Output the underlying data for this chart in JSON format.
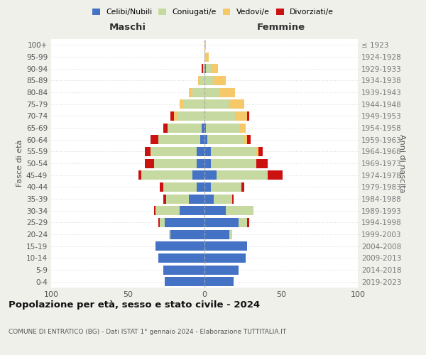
{
  "age_groups": [
    "0-4",
    "5-9",
    "10-14",
    "15-19",
    "20-24",
    "25-29",
    "30-34",
    "35-39",
    "40-44",
    "45-49",
    "50-54",
    "55-59",
    "60-64",
    "65-69",
    "70-74",
    "75-79",
    "80-84",
    "85-89",
    "90-94",
    "95-99",
    "100+"
  ],
  "birth_years": [
    "2019-2023",
    "2014-2018",
    "2009-2013",
    "2004-2008",
    "1999-2003",
    "1994-1998",
    "1989-1993",
    "1984-1988",
    "1979-1983",
    "1974-1978",
    "1969-1973",
    "1964-1968",
    "1959-1963",
    "1954-1958",
    "1949-1953",
    "1944-1948",
    "1939-1943",
    "1934-1938",
    "1929-1933",
    "1924-1928",
    "≤ 1923"
  ],
  "maschi": {
    "celibe": [
      26,
      27,
      30,
      32,
      22,
      26,
      16,
      10,
      5,
      8,
      5,
      5,
      3,
      2,
      0,
      0,
      0,
      0,
      0,
      0,
      0
    ],
    "coniugato": [
      0,
      0,
      0,
      0,
      1,
      3,
      16,
      15,
      22,
      33,
      28,
      30,
      27,
      22,
      18,
      14,
      8,
      3,
      1,
      0,
      0
    ],
    "vedovo": [
      0,
      0,
      0,
      0,
      0,
      0,
      0,
      0,
      0,
      0,
      0,
      0,
      0,
      0,
      2,
      2,
      2,
      1,
      0,
      0,
      0
    ],
    "divorziato": [
      0,
      0,
      0,
      0,
      0,
      1,
      1,
      2,
      2,
      2,
      6,
      4,
      5,
      3,
      2,
      0,
      0,
      0,
      1,
      0,
      0
    ]
  },
  "femmine": {
    "nubile": [
      19,
      22,
      27,
      28,
      16,
      22,
      14,
      6,
      4,
      8,
      4,
      4,
      2,
      1,
      0,
      0,
      0,
      0,
      1,
      0,
      0
    ],
    "coniugata": [
      0,
      0,
      0,
      0,
      2,
      6,
      18,
      12,
      20,
      33,
      30,
      30,
      24,
      22,
      20,
      16,
      10,
      6,
      3,
      1,
      0
    ],
    "vedova": [
      0,
      0,
      0,
      0,
      0,
      0,
      0,
      0,
      0,
      0,
      0,
      1,
      2,
      4,
      8,
      10,
      10,
      8,
      5,
      2,
      1
    ],
    "divorziata": [
      0,
      0,
      0,
      0,
      0,
      1,
      0,
      1,
      2,
      10,
      7,
      3,
      2,
      0,
      1,
      0,
      0,
      0,
      0,
      0,
      0
    ]
  },
  "colors": {
    "celibe": "#4472c4",
    "coniugato": "#c5d9a0",
    "vedovo": "#f5c96a",
    "divorziato": "#cc1111"
  },
  "legend_labels": [
    "Celibi/Nubili",
    "Coniugati/e",
    "Vedovi/e",
    "Divorziati/e"
  ],
  "xlim": 100,
  "title": "Popolazione per età, sesso e stato civile - 2024",
  "subtitle": "COMUNE DI ENTRATICO (BG) - Dati ISTAT 1° gennaio 2024 - Elaborazione TUTTITALIA.IT",
  "ylabel_left": "Fasce di età",
  "ylabel_right": "Anni di nascita",
  "xlabel_maschi": "Maschi",
  "xlabel_femmine": "Femmine",
  "bg_color": "#f0f0eb",
  "plot_bg": "#ffffff"
}
